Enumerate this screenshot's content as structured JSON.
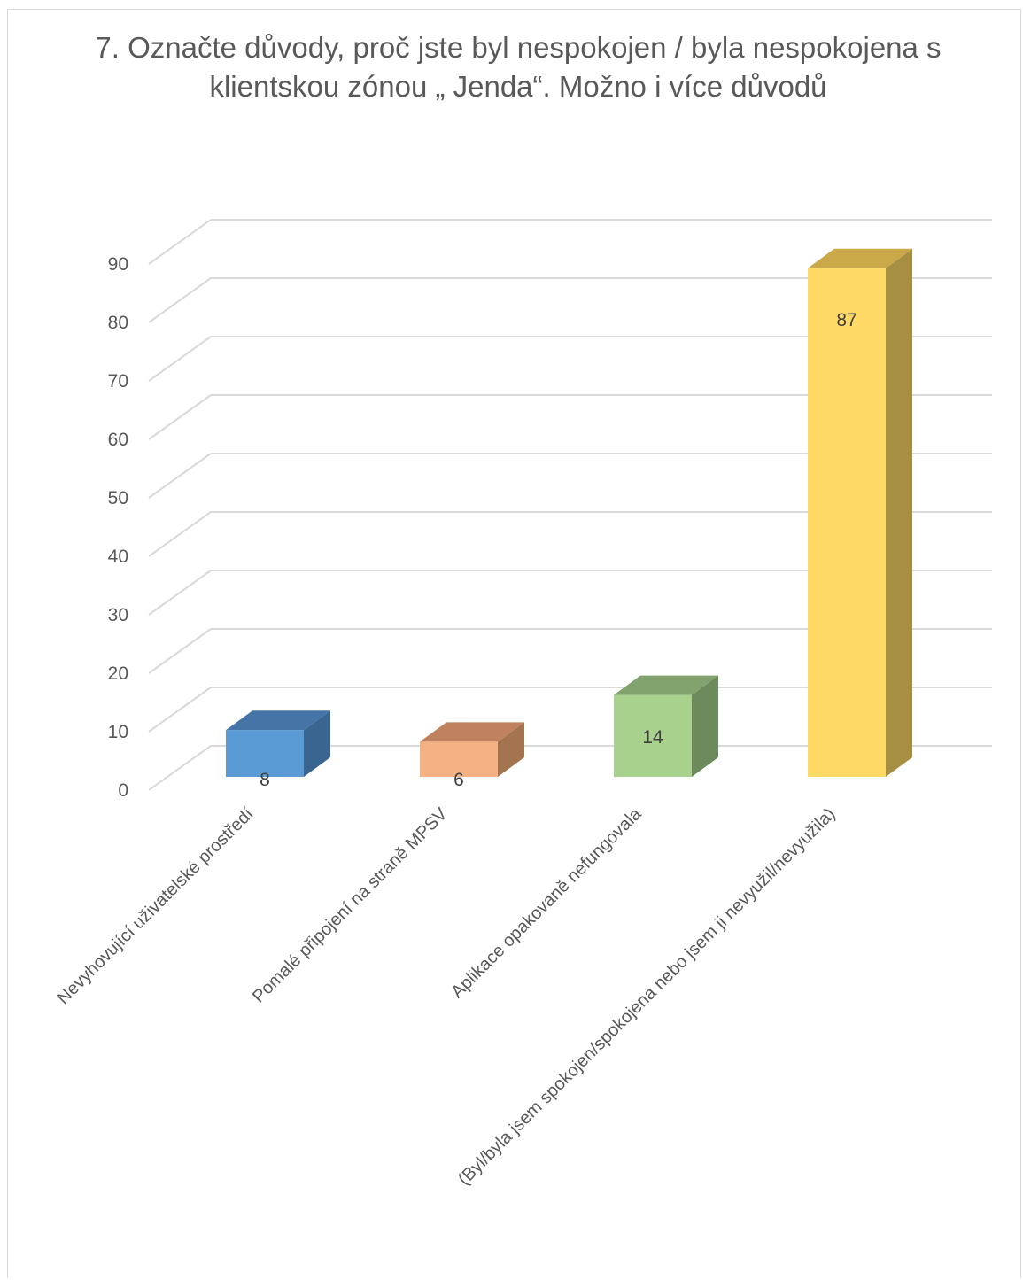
{
  "chart_data": {
    "type": "bar",
    "style": "3d-column",
    "title": "7. Označte důvody, proč jste byl nespokojen / byla nespokojena s klientskou zónou „ Jenda“. Možno i více důvodů",
    "categories": [
      "Nevyhovující uživatelské prostředí",
      "Pomalé připojení na straně MPSV",
      "Aplikace opakovaně nefungovala",
      "(Byl/byla jsem spokojen/spokojena nebo jsem ji nevyužil/nevyužila)"
    ],
    "values": [
      8,
      6,
      14,
      87
    ],
    "data_labels": [
      "8",
      "6",
      "14",
      "87"
    ],
    "ylim": [
      0,
      90
    ],
    "yticks": [
      0,
      10,
      20,
      30,
      40,
      50,
      60,
      70,
      80,
      90
    ],
    "grid": true,
    "legend": "none",
    "colors": {
      "front": [
        "#5b9bd5",
        "#f4b183",
        "#a9d18e",
        "#ffd966"
      ],
      "top": [
        "#4575a7",
        "#c0825e",
        "#82a26e",
        "#c9a948"
      ],
      "side": [
        "#3a6591",
        "#a47450",
        "#6c8a5b",
        "#a68f40"
      ],
      "grid": "#d9d9d9",
      "text": "#595959"
    }
  }
}
